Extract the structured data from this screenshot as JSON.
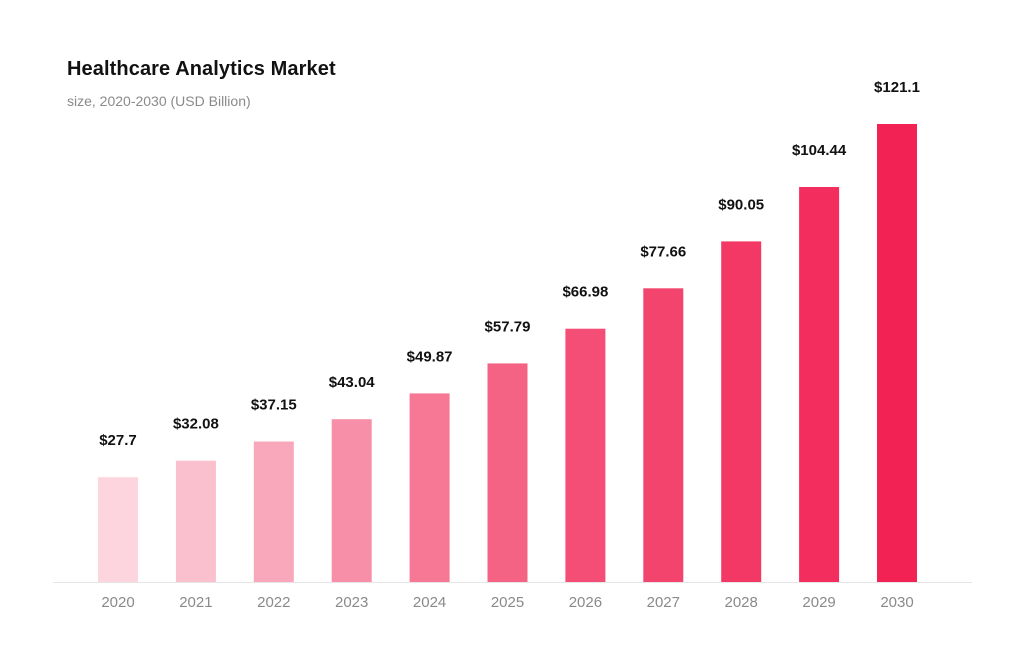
{
  "chart_data": {
    "type": "bar",
    "title": "Healthcare Analytics Market",
    "subtitle": "size, 2020-2030 (USD Billion)",
    "xlabel": "",
    "ylabel": "",
    "ylim": [
      0,
      121.1
    ],
    "grid": false,
    "legend": "none",
    "value_prefix": "$",
    "categories": [
      "2020",
      "2021",
      "2022",
      "2023",
      "2024",
      "2025",
      "2026",
      "2027",
      "2028",
      "2029",
      "2030"
    ],
    "values": [
      27.7,
      32.08,
      37.15,
      43.04,
      49.87,
      57.79,
      66.98,
      77.66,
      90.05,
      104.44,
      121.1
    ],
    "data_labels": [
      "$27.7",
      "$32.08",
      "$37.15",
      "$43.04",
      "$49.87",
      "$57.79",
      "$66.98",
      "$77.66",
      "$90.05",
      "$104.44",
      "$121.1"
    ],
    "colors": [
      "#fdd5de",
      "#fbc0ce",
      "#f9a8bb",
      "#f78fa8",
      "#f67894",
      "#f56384",
      "#f44e76",
      "#f3446e",
      "#f33865",
      "#f32d5d",
      "#f22255"
    ],
    "axis_color": "#e6e6e6"
  }
}
